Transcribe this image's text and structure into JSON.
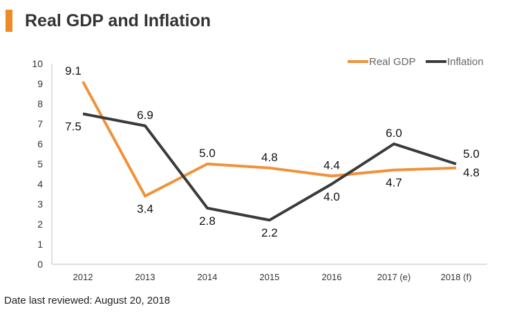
{
  "header": {
    "title": "Real GDP and Inflation"
  },
  "footer": {
    "note": "Date last reviewed: August 20, 2018"
  },
  "colors": {
    "accent": "#f08a24",
    "real_gdp": "#f0923a",
    "inflation": "#3a3a3a"
  },
  "chart_data": {
    "type": "line",
    "title": "Real GDP and Inflation",
    "categories": [
      "2012",
      "2013",
      "2014",
      "2015",
      "2016",
      "2017 (e)",
      "2018 (f)"
    ],
    "series": [
      {
        "name": "Real GDP",
        "values": [
          9.1,
          3.4,
          5.0,
          4.8,
          4.4,
          4.7,
          4.8
        ],
        "labels": [
          "9.1",
          "3.4",
          "5.0",
          "4.8",
          "4.4",
          "4.7",
          "4.8"
        ]
      },
      {
        "name": "Inflation",
        "values": [
          7.5,
          6.9,
          2.8,
          2.2,
          4.0,
          6.0,
          5.0
        ],
        "labels": [
          "7.5",
          "6.9",
          "2.8",
          "2.2",
          "4.0",
          "6.0",
          "5.0"
        ]
      }
    ],
    "yticks": [
      "0",
      "1",
      "2",
      "3",
      "4",
      "5",
      "6",
      "7",
      "8",
      "9",
      "10"
    ],
    "ylim": [
      0,
      10
    ],
    "grid": false,
    "legend_position": "top-right"
  }
}
